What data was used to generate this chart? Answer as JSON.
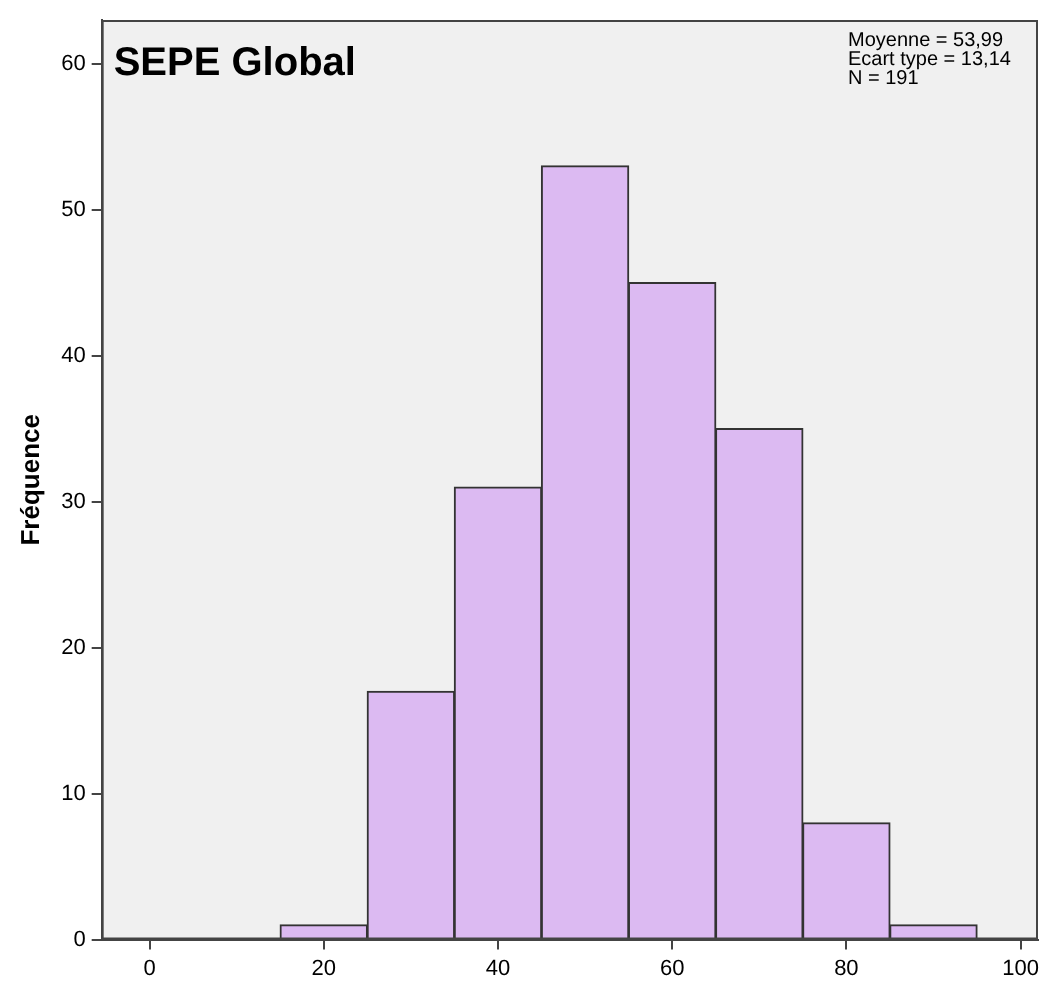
{
  "chart_data": {
    "type": "histogram",
    "title": "SEPE Global",
    "ylabel": "Fréquence",
    "bins": [
      15,
      25,
      35,
      45,
      55,
      65,
      75,
      85,
      95
    ],
    "values": [
      1,
      17,
      31,
      53,
      45,
      35,
      8,
      1
    ],
    "color": "#dcbaf2",
    "xlim": [
      -5.5,
      102
    ],
    "xticks": [
      0,
      20,
      40,
      60,
      80,
      100
    ],
    "ylim": [
      0,
      63
    ],
    "yticks": [
      0,
      10,
      20,
      30,
      40,
      50,
      60
    ],
    "annotations": [
      "Moyenne = 53,99",
      "Ecart type = 13,14",
      "N = 191"
    ],
    "grid": false,
    "legend": false
  }
}
